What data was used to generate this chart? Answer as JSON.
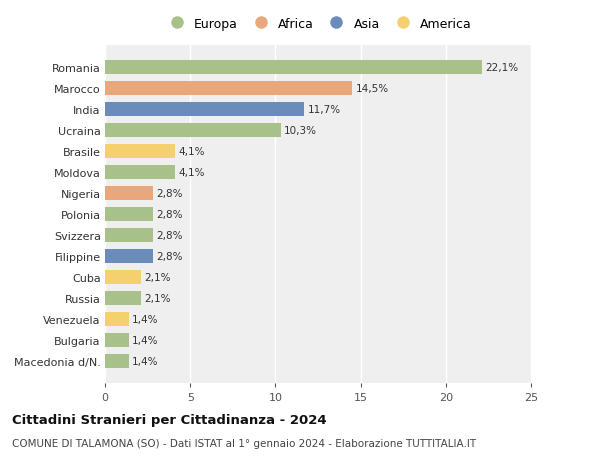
{
  "countries": [
    "Romania",
    "Marocco",
    "India",
    "Ucraina",
    "Brasile",
    "Moldova",
    "Nigeria",
    "Polonia",
    "Svizzera",
    "Filippine",
    "Cuba",
    "Russia",
    "Venezuela",
    "Bulgaria",
    "Macedonia d/N."
  ],
  "values": [
    22.1,
    14.5,
    11.7,
    10.3,
    4.1,
    4.1,
    2.8,
    2.8,
    2.8,
    2.8,
    2.1,
    2.1,
    1.4,
    1.4,
    1.4
  ],
  "labels": [
    "22,1%",
    "14,5%",
    "11,7%",
    "10,3%",
    "4,1%",
    "4,1%",
    "2,8%",
    "2,8%",
    "2,8%",
    "2,8%",
    "2,1%",
    "2,1%",
    "1,4%",
    "1,4%",
    "1,4%"
  ],
  "continents": [
    "Europa",
    "Africa",
    "Asia",
    "Europa",
    "America",
    "Europa",
    "Africa",
    "Europa",
    "Europa",
    "Asia",
    "America",
    "Europa",
    "America",
    "Europa",
    "Europa"
  ],
  "colors": {
    "Europa": "#a8c08a",
    "Africa": "#e8a87c",
    "Asia": "#6b8cba",
    "America": "#f5d06e"
  },
  "legend_order": [
    "Europa",
    "Africa",
    "Asia",
    "America"
  ],
  "xlim": [
    0,
    25
  ],
  "xticks": [
    0,
    5,
    10,
    15,
    20,
    25
  ],
  "title": "Cittadini Stranieri per Cittadinanza - 2024",
  "subtitle": "COMUNE DI TALAMONA (SO) - Dati ISTAT al 1° gennaio 2024 - Elaborazione TUTTITALIA.IT",
  "background_color": "#ffffff",
  "bar_background": "#efefef",
  "grid_color": "#ffffff",
  "bar_height": 0.65,
  "label_fontsize": 7.5,
  "ytick_fontsize": 8,
  "xtick_fontsize": 8,
  "legend_fontsize": 9,
  "title_fontsize": 9.5,
  "subtitle_fontsize": 7.5
}
